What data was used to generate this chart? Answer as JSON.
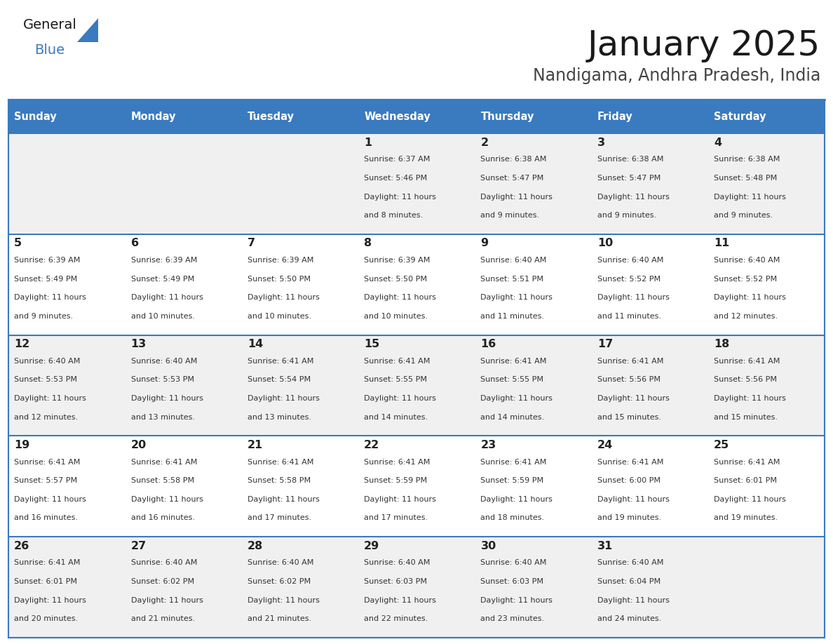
{
  "title": "January 2025",
  "subtitle": "Nandigama, Andhra Pradesh, India",
  "header_bg": "#3a7abf",
  "header_text": "#ffffff",
  "row_bg_odd": "#f0f0f0",
  "row_bg_even": "#ffffff",
  "cell_text": "#333333",
  "border_color": "#3a7abf",
  "days_of_week": [
    "Sunday",
    "Monday",
    "Tuesday",
    "Wednesday",
    "Thursday",
    "Friday",
    "Saturday"
  ],
  "calendar": [
    [
      {
        "day": "",
        "info": ""
      },
      {
        "day": "",
        "info": ""
      },
      {
        "day": "",
        "info": ""
      },
      {
        "day": "1",
        "info": "Sunrise: 6:37 AM\nSunset: 5:46 PM\nDaylight: 11 hours\nand 8 minutes."
      },
      {
        "day": "2",
        "info": "Sunrise: 6:38 AM\nSunset: 5:47 PM\nDaylight: 11 hours\nand 9 minutes."
      },
      {
        "day": "3",
        "info": "Sunrise: 6:38 AM\nSunset: 5:47 PM\nDaylight: 11 hours\nand 9 minutes."
      },
      {
        "day": "4",
        "info": "Sunrise: 6:38 AM\nSunset: 5:48 PM\nDaylight: 11 hours\nand 9 minutes."
      }
    ],
    [
      {
        "day": "5",
        "info": "Sunrise: 6:39 AM\nSunset: 5:49 PM\nDaylight: 11 hours\nand 9 minutes."
      },
      {
        "day": "6",
        "info": "Sunrise: 6:39 AM\nSunset: 5:49 PM\nDaylight: 11 hours\nand 10 minutes."
      },
      {
        "day": "7",
        "info": "Sunrise: 6:39 AM\nSunset: 5:50 PM\nDaylight: 11 hours\nand 10 minutes."
      },
      {
        "day": "8",
        "info": "Sunrise: 6:39 AM\nSunset: 5:50 PM\nDaylight: 11 hours\nand 10 minutes."
      },
      {
        "day": "9",
        "info": "Sunrise: 6:40 AM\nSunset: 5:51 PM\nDaylight: 11 hours\nand 11 minutes."
      },
      {
        "day": "10",
        "info": "Sunrise: 6:40 AM\nSunset: 5:52 PM\nDaylight: 11 hours\nand 11 minutes."
      },
      {
        "day": "11",
        "info": "Sunrise: 6:40 AM\nSunset: 5:52 PM\nDaylight: 11 hours\nand 12 minutes."
      }
    ],
    [
      {
        "day": "12",
        "info": "Sunrise: 6:40 AM\nSunset: 5:53 PM\nDaylight: 11 hours\nand 12 minutes."
      },
      {
        "day": "13",
        "info": "Sunrise: 6:40 AM\nSunset: 5:53 PM\nDaylight: 11 hours\nand 13 minutes."
      },
      {
        "day": "14",
        "info": "Sunrise: 6:41 AM\nSunset: 5:54 PM\nDaylight: 11 hours\nand 13 minutes."
      },
      {
        "day": "15",
        "info": "Sunrise: 6:41 AM\nSunset: 5:55 PM\nDaylight: 11 hours\nand 14 minutes."
      },
      {
        "day": "16",
        "info": "Sunrise: 6:41 AM\nSunset: 5:55 PM\nDaylight: 11 hours\nand 14 minutes."
      },
      {
        "day": "17",
        "info": "Sunrise: 6:41 AM\nSunset: 5:56 PM\nDaylight: 11 hours\nand 15 minutes."
      },
      {
        "day": "18",
        "info": "Sunrise: 6:41 AM\nSunset: 5:56 PM\nDaylight: 11 hours\nand 15 minutes."
      }
    ],
    [
      {
        "day": "19",
        "info": "Sunrise: 6:41 AM\nSunset: 5:57 PM\nDaylight: 11 hours\nand 16 minutes."
      },
      {
        "day": "20",
        "info": "Sunrise: 6:41 AM\nSunset: 5:58 PM\nDaylight: 11 hours\nand 16 minutes."
      },
      {
        "day": "21",
        "info": "Sunrise: 6:41 AM\nSunset: 5:58 PM\nDaylight: 11 hours\nand 17 minutes."
      },
      {
        "day": "22",
        "info": "Sunrise: 6:41 AM\nSunset: 5:59 PM\nDaylight: 11 hours\nand 17 minutes."
      },
      {
        "day": "23",
        "info": "Sunrise: 6:41 AM\nSunset: 5:59 PM\nDaylight: 11 hours\nand 18 minutes."
      },
      {
        "day": "24",
        "info": "Sunrise: 6:41 AM\nSunset: 6:00 PM\nDaylight: 11 hours\nand 19 minutes."
      },
      {
        "day": "25",
        "info": "Sunrise: 6:41 AM\nSunset: 6:01 PM\nDaylight: 11 hours\nand 19 minutes."
      }
    ],
    [
      {
        "day": "26",
        "info": "Sunrise: 6:41 AM\nSunset: 6:01 PM\nDaylight: 11 hours\nand 20 minutes."
      },
      {
        "day": "27",
        "info": "Sunrise: 6:40 AM\nSunset: 6:02 PM\nDaylight: 11 hours\nand 21 minutes."
      },
      {
        "day": "28",
        "info": "Sunrise: 6:40 AM\nSunset: 6:02 PM\nDaylight: 11 hours\nand 21 minutes."
      },
      {
        "day": "29",
        "info": "Sunrise: 6:40 AM\nSunset: 6:03 PM\nDaylight: 11 hours\nand 22 minutes."
      },
      {
        "day": "30",
        "info": "Sunrise: 6:40 AM\nSunset: 6:03 PM\nDaylight: 11 hours\nand 23 minutes."
      },
      {
        "day": "31",
        "info": "Sunrise: 6:40 AM\nSunset: 6:04 PM\nDaylight: 11 hours\nand 24 minutes."
      },
      {
        "day": "",
        "info": ""
      }
    ]
  ]
}
